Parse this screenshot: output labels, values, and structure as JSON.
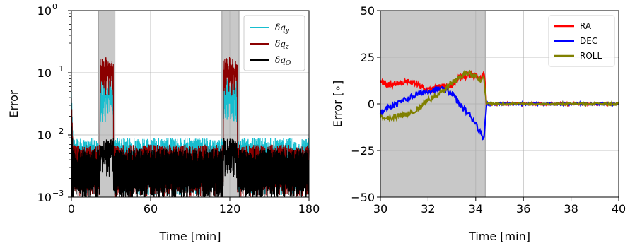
{
  "chart_data": [
    {
      "type": "line",
      "xlabel": "Time [min]",
      "ylabel": "Error",
      "xlim": [
        0,
        180
      ],
      "ylim": [
        0.001,
        1
      ],
      "yscale": "log",
      "grid": true,
      "x_ticks": [
        0,
        60,
        120,
        180
      ],
      "x_tick_labels": [
        "0",
        "60",
        "120",
        "180"
      ],
      "y_ticks": [
        0.001,
        0.01,
        0.1,
        1
      ],
      "y_tick_labels": [
        {
          "base": "10",
          "exp": "−3"
        },
        {
          "base": "10",
          "exp": "−2"
        },
        {
          "base": "10",
          "exp": "−1"
        },
        {
          "base": "10",
          "exp": "0"
        }
      ],
      "shaded_regions": [
        [
          20.5,
          33
        ],
        [
          114,
          127
        ]
      ],
      "legend_position": "top-right",
      "series": [
        {
          "name": "δqy",
          "legend": {
            "main": "δq",
            "sub": "y"
          },
          "color": "#17becf",
          "baseline": {
            "lo": 0.0012,
            "hi": 0.009
          },
          "burst_level": [
            0.04,
            0.08
          ],
          "initial_peak": 0.05
        },
        {
          "name": "δqz",
          "legend": {
            "main": "δq",
            "sub": "z"
          },
          "color": "#8b0000",
          "baseline": {
            "lo": 0.0011,
            "hi": 0.007
          },
          "burst_level": [
            0.1,
            0.18
          ],
          "initial_peak": 0.04
        },
        {
          "name": "δqO",
          "legend": {
            "main": "δq",
            "sub": "O"
          },
          "color": "#000000",
          "baseline": {
            "lo": 0.001,
            "hi": 0.006
          },
          "burst_level": [
            0.005,
            0.009
          ],
          "initial_peak": 0.02
        }
      ]
    },
    {
      "type": "line",
      "xlabel": "Time [min]",
      "ylabel": "Error [∘]",
      "xlim": [
        30,
        40
      ],
      "ylim": [
        -50,
        50
      ],
      "grid": true,
      "x_ticks": [
        30,
        32,
        34,
        36,
        38,
        40
      ],
      "x_tick_labels": [
        "30",
        "32",
        "34",
        "36",
        "38",
        "40"
      ],
      "y_ticks": [
        -50,
        -25,
        0,
        25,
        50
      ],
      "y_tick_labels": [
        "−50",
        "−25",
        "0",
        "25",
        "50"
      ],
      "shaded_regions": [
        [
          30,
          34.4
        ]
      ],
      "legend_position": "top-right",
      "series": [
        {
          "name": "RA",
          "color": "#ff0000",
          "x": [
            30,
            30.3,
            30.6,
            31,
            31.5,
            32,
            32.5,
            33,
            33.3,
            33.6,
            34,
            34.2,
            34.35,
            34.45,
            35,
            36,
            37,
            38,
            39,
            40
          ],
          "y": [
            12,
            10,
            11,
            12,
            11,
            8,
            9,
            10,
            14,
            15,
            15,
            14,
            17,
            0,
            0,
            0,
            0,
            0,
            0,
            0
          ]
        },
        {
          "name": "DEC",
          "color": "#0000ff",
          "x": [
            30,
            30.3,
            30.6,
            31,
            31.5,
            32,
            32.5,
            33,
            33.3,
            33.6,
            34,
            34.2,
            34.35,
            34.45,
            35,
            36,
            37,
            38,
            39,
            40
          ],
          "y": [
            -5,
            -2,
            -1,
            2,
            5,
            7,
            8,
            6,
            0,
            -4,
            -10,
            -16,
            -18,
            0,
            0,
            0,
            0,
            0,
            0,
            0
          ]
        },
        {
          "name": "ROLL",
          "color": "#808000",
          "x": [
            30,
            30.3,
            30.6,
            31,
            31.5,
            32,
            32.5,
            33,
            33.3,
            33.6,
            34,
            34.2,
            34.35,
            34.45,
            35,
            36,
            37,
            38,
            39,
            40
          ],
          "y": [
            -6,
            -8,
            -7,
            -6,
            -3,
            2,
            6,
            11,
            14,
            17,
            15,
            13,
            14,
            0,
            0,
            0,
            0,
            0,
            0,
            0
          ]
        }
      ]
    }
  ]
}
